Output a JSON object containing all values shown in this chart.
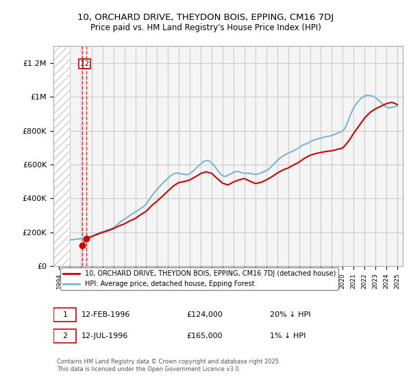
{
  "title": "10, ORCHARD DRIVE, THEYDON BOIS, EPPING, CM16 7DJ",
  "subtitle": "Price paid vs. HM Land Registry's House Price Index (HPI)",
  "ylabel_ticks": [
    0,
    200000,
    400000,
    600000,
    800000,
    1000000,
    1200000
  ],
  "ylabel_labels": [
    "£0",
    "£200K",
    "£400K",
    "£600K",
    "£800K",
    "£1M",
    "£1.2M"
  ],
  "ylim": [
    0,
    1300000
  ],
  "xlim_min": 1993.5,
  "xlim_max": 2025.5,
  "hatch_end_year": 1995.0,
  "transactions": [
    {
      "label": "1",
      "date": "12-FEB-1996",
      "year": 1996.12,
      "price": 124000,
      "hpi_pct": "20% ↓ HPI"
    },
    {
      "label": "2",
      "date": "12-JUL-1996",
      "year": 1996.54,
      "price": 165000,
      "hpi_pct": "1% ↓ HPI"
    }
  ],
  "hpi_line_color": "#7fb3d3",
  "price_line_color": "#cc0000",
  "transaction_marker_color": "#cc0000",
  "background_color": "#f5f5f5",
  "grid_color": "#cccccc",
  "hatch_color": "#cccccc",
  "legend_label_price": "10, ORCHARD DRIVE, THEYDON BOIS, EPPING, CM16 7DJ (detached house)",
  "legend_label_hpi": "HPI: Average price, detached house, Epping Forest",
  "footer": "Contains HM Land Registry data © Crown copyright and database right 2025.\nThis data is licensed under the Open Government Licence v3.0.",
  "hpi_data_years": [
    1995.0,
    1995.25,
    1995.5,
    1995.75,
    1996.0,
    1996.25,
    1996.5,
    1996.75,
    1997.0,
    1997.25,
    1997.5,
    1997.75,
    1998.0,
    1998.25,
    1998.5,
    1998.75,
    1999.0,
    1999.25,
    1999.5,
    1999.75,
    2000.0,
    2000.25,
    2000.5,
    2000.75,
    2001.0,
    2001.25,
    2001.5,
    2001.75,
    2002.0,
    2002.25,
    2002.5,
    2002.75,
    2003.0,
    2003.25,
    2003.5,
    2003.75,
    2004.0,
    2004.25,
    2004.5,
    2004.75,
    2005.0,
    2005.25,
    2005.5,
    2005.75,
    2006.0,
    2006.25,
    2006.5,
    2006.75,
    2007.0,
    2007.25,
    2007.5,
    2007.75,
    2008.0,
    2008.25,
    2008.5,
    2008.75,
    2009.0,
    2009.25,
    2009.5,
    2009.75,
    2010.0,
    2010.25,
    2010.5,
    2010.75,
    2011.0,
    2011.25,
    2011.5,
    2011.75,
    2012.0,
    2012.25,
    2012.5,
    2012.75,
    2013.0,
    2013.25,
    2013.5,
    2013.75,
    2014.0,
    2014.25,
    2014.5,
    2014.75,
    2015.0,
    2015.25,
    2015.5,
    2015.75,
    2016.0,
    2016.25,
    2016.5,
    2016.75,
    2017.0,
    2017.25,
    2017.5,
    2017.75,
    2018.0,
    2018.25,
    2018.5,
    2018.75,
    2019.0,
    2019.25,
    2019.5,
    2019.75,
    2020.0,
    2020.25,
    2020.5,
    2020.75,
    2021.0,
    2021.25,
    2021.5,
    2021.75,
    2022.0,
    2022.25,
    2022.5,
    2022.75,
    2023.0,
    2023.25,
    2023.5,
    2023.75,
    2024.0,
    2024.25,
    2024.5,
    2024.75,
    2025.0
  ],
  "hpi_data_values": [
    155000,
    157000,
    159000,
    161000,
    163000,
    165000,
    166000,
    168000,
    175000,
    183000,
    192000,
    198000,
    203000,
    208000,
    215000,
    220000,
    228000,
    240000,
    255000,
    268000,
    278000,
    288000,
    300000,
    312000,
    320000,
    330000,
    342000,
    352000,
    368000,
    390000,
    415000,
    435000,
    455000,
    472000,
    490000,
    505000,
    520000,
    535000,
    545000,
    550000,
    548000,
    545000,
    543000,
    540000,
    548000,
    560000,
    575000,
    590000,
    605000,
    618000,
    625000,
    622000,
    610000,
    592000,
    570000,
    548000,
    535000,
    530000,
    538000,
    545000,
    555000,
    560000,
    558000,
    552000,
    548000,
    550000,
    548000,
    545000,
    542000,
    545000,
    550000,
    558000,
    565000,
    575000,
    590000,
    608000,
    625000,
    638000,
    650000,
    660000,
    668000,
    675000,
    682000,
    690000,
    700000,
    712000,
    720000,
    725000,
    735000,
    742000,
    748000,
    752000,
    758000,
    762000,
    765000,
    768000,
    772000,
    778000,
    785000,
    792000,
    798000,
    820000,
    860000,
    900000,
    935000,
    960000,
    980000,
    995000,
    1005000,
    1010000,
    1008000,
    1005000,
    995000,
    982000,
    968000,
    952000,
    940000,
    935000,
    938000,
    942000,
    948000
  ],
  "price_data_years": [
    1996.12,
    1996.54,
    1997.0,
    1997.5,
    1998.0,
    1998.5,
    1999.0,
    1999.5,
    2000.0,
    2000.5,
    2001.0,
    2001.5,
    2002.0,
    2002.5,
    2003.0,
    2003.5,
    2004.0,
    2004.5,
    2005.0,
    2005.5,
    2006.0,
    2006.5,
    2007.0,
    2007.5,
    2008.0,
    2008.5,
    2009.0,
    2009.5,
    2010.0,
    2010.5,
    2011.0,
    2011.5,
    2012.0,
    2012.5,
    2013.0,
    2013.5,
    2014.0,
    2014.5,
    2015.0,
    2015.5,
    2016.0,
    2016.5,
    2017.0,
    2017.5,
    2018.0,
    2018.5,
    2019.0,
    2019.5,
    2020.0,
    2020.5,
    2021.0,
    2021.5,
    2022.0,
    2022.5,
    2023.0,
    2023.5,
    2024.0,
    2024.5,
    2025.0
  ],
  "price_data_values": [
    124000,
    165000,
    176000,
    188000,
    200000,
    210000,
    222000,
    238000,
    250000,
    268000,
    282000,
    305000,
    325000,
    358000,
    385000,
    415000,
    445000,
    475000,
    495000,
    500000,
    510000,
    528000,
    548000,
    558000,
    548000,
    518000,
    490000,
    480000,
    498000,
    510000,
    518000,
    502000,
    488000,
    495000,
    510000,
    528000,
    550000,
    568000,
    580000,
    598000,
    615000,
    638000,
    655000,
    665000,
    672000,
    678000,
    682000,
    690000,
    698000,
    735000,
    785000,
    830000,
    875000,
    908000,
    930000,
    945000,
    960000,
    968000,
    955000
  ]
}
